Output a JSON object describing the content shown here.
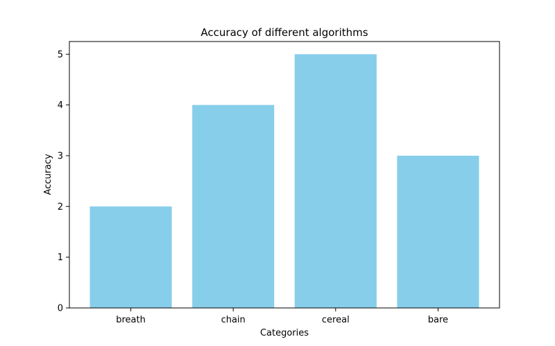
{
  "chart_data": {
    "type": "bar",
    "title": "Accuracy of different algorithms",
    "xlabel": "Categories",
    "ylabel": "Accuracy",
    "categories": [
      "breath",
      "chain",
      "cereal",
      "bare"
    ],
    "values": [
      2,
      4,
      5,
      3
    ],
    "ylim": [
      0,
      5.25
    ],
    "yticks": [
      0,
      1,
      2,
      3,
      4,
      5
    ],
    "bar_color": "#87CEEB",
    "grid": false,
    "legend": "none"
  }
}
